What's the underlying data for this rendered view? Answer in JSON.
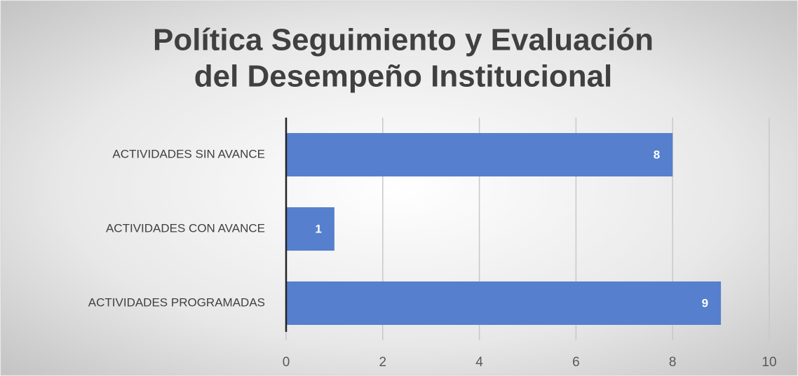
{
  "chart_data": {
    "type": "bar",
    "orientation": "horizontal",
    "title": [
      "Política   Seguimiento y Evaluación",
      "del Desempeño Institucional"
    ],
    "categories": [
      "ACTIVIDADES SIN AVANCE",
      "ACTIVIDADES CON AVANCE",
      "ACTIVIDADES PROGRAMADAS"
    ],
    "values": [
      8,
      1,
      9
    ],
    "color": "#5680cd",
    "xlim": [
      0,
      10
    ],
    "xticks": [
      0,
      2,
      4,
      6,
      8,
      10
    ],
    "grid": true
  }
}
